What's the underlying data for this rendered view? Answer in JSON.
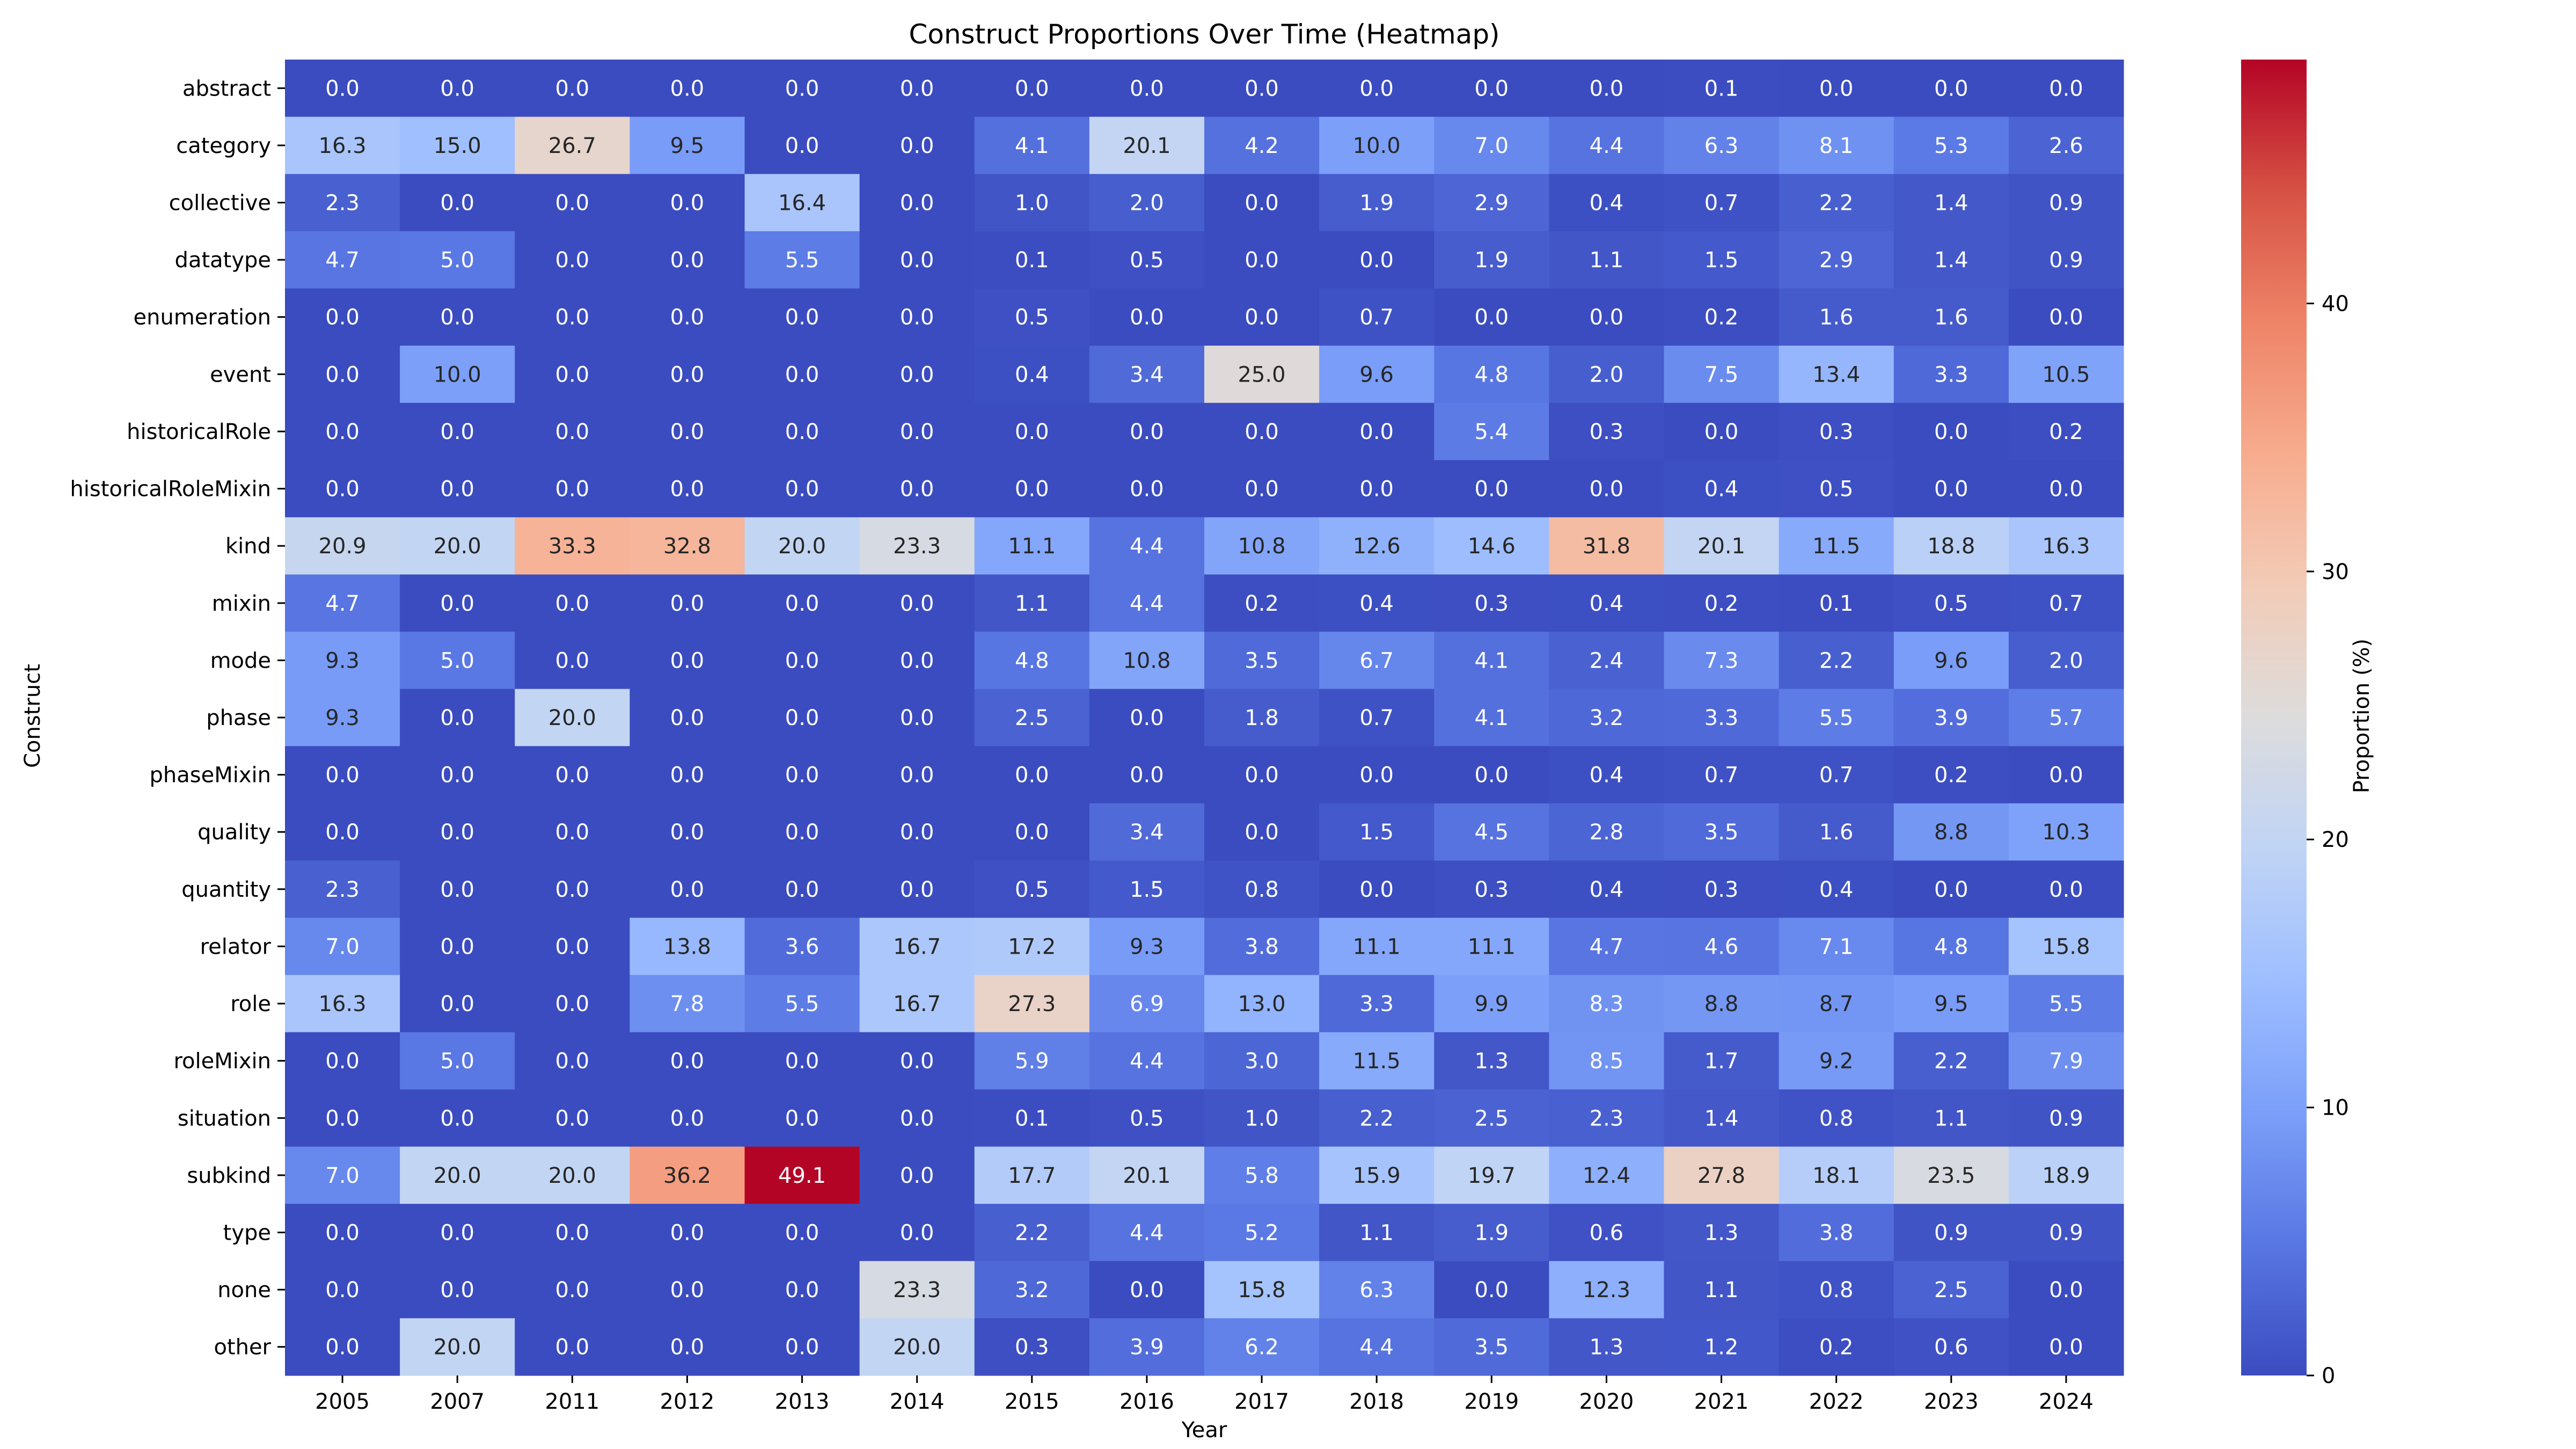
{
  "chart_data": {
    "type": "heatmap",
    "title": "Construct Proportions Over Time (Heatmap)",
    "xlabel": "Year",
    "ylabel": "Construct",
    "colorbar": {
      "label": "Proportion (%)",
      "ticks": [
        0,
        10,
        20,
        30,
        40
      ],
      "range": [
        0,
        49.1
      ],
      "colormap": "coolwarm",
      "colormap_stops": [
        "#3b4cc0",
        "#5977e3",
        "#7b9ff9",
        "#9ebeff",
        "#c0d4f5",
        "#dddcdc",
        "#f2cbb7",
        "#f7ac8e",
        "#ee8468",
        "#d65244",
        "#b40426"
      ]
    },
    "columns": [
      "2005",
      "2007",
      "2011",
      "2012",
      "2013",
      "2014",
      "2015",
      "2016",
      "2017",
      "2018",
      "2019",
      "2020",
      "2021",
      "2022",
      "2023",
      "2024"
    ],
    "rows": [
      "abstract",
      "category",
      "collective",
      "datatype",
      "enumeration",
      "event",
      "historicalRole",
      "historicalRoleMixin",
      "kind",
      "mixin",
      "mode",
      "phase",
      "phaseMixin",
      "quality",
      "quantity",
      "relator",
      "role",
      "roleMixin",
      "situation",
      "subkind",
      "type",
      "none",
      "other"
    ],
    "values": [
      [
        0.0,
        0.0,
        0.0,
        0.0,
        0.0,
        0.0,
        0.0,
        0.0,
        0.0,
        0.0,
        0.0,
        0.0,
        0.1,
        0.0,
        0.0,
        0.0
      ],
      [
        16.3,
        15.0,
        26.7,
        9.5,
        0.0,
        0.0,
        4.1,
        20.1,
        4.2,
        10.0,
        7.0,
        4.4,
        6.3,
        8.1,
        5.3,
        2.6
      ],
      [
        2.3,
        0.0,
        0.0,
        0.0,
        16.4,
        0.0,
        1.0,
        2.0,
        0.0,
        1.9,
        2.9,
        0.4,
        0.7,
        2.2,
        1.4,
        0.9
      ],
      [
        4.7,
        5.0,
        0.0,
        0.0,
        5.5,
        0.0,
        0.1,
        0.5,
        0.0,
        0.0,
        1.9,
        1.1,
        1.5,
        2.9,
        1.4,
        0.9
      ],
      [
        0.0,
        0.0,
        0.0,
        0.0,
        0.0,
        0.0,
        0.5,
        0.0,
        0.0,
        0.7,
        0.0,
        0.0,
        0.2,
        1.6,
        1.6,
        0.0
      ],
      [
        0.0,
        10.0,
        0.0,
        0.0,
        0.0,
        0.0,
        0.4,
        3.4,
        25.0,
        9.6,
        4.8,
        2.0,
        7.5,
        13.4,
        3.3,
        10.5
      ],
      [
        0.0,
        0.0,
        0.0,
        0.0,
        0.0,
        0.0,
        0.0,
        0.0,
        0.0,
        0.0,
        5.4,
        0.3,
        0.0,
        0.3,
        0.0,
        0.2
      ],
      [
        0.0,
        0.0,
        0.0,
        0.0,
        0.0,
        0.0,
        0.0,
        0.0,
        0.0,
        0.0,
        0.0,
        0.0,
        0.4,
        0.5,
        0.0,
        0.0
      ],
      [
        20.9,
        20.0,
        33.3,
        32.8,
        20.0,
        23.3,
        11.1,
        4.4,
        10.8,
        12.6,
        14.6,
        31.8,
        20.1,
        11.5,
        18.8,
        16.3
      ],
      [
        4.7,
        0.0,
        0.0,
        0.0,
        0.0,
        0.0,
        1.1,
        4.4,
        0.2,
        0.4,
        0.3,
        0.4,
        0.2,
        0.1,
        0.5,
        0.7
      ],
      [
        9.3,
        5.0,
        0.0,
        0.0,
        0.0,
        0.0,
        4.8,
        10.8,
        3.5,
        6.7,
        4.1,
        2.4,
        7.3,
        2.2,
        9.6,
        2.0
      ],
      [
        9.3,
        0.0,
        20.0,
        0.0,
        0.0,
        0.0,
        2.5,
        0.0,
        1.8,
        0.7,
        4.1,
        3.2,
        3.3,
        5.5,
        3.9,
        5.7
      ],
      [
        0.0,
        0.0,
        0.0,
        0.0,
        0.0,
        0.0,
        0.0,
        0.0,
        0.0,
        0.0,
        0.0,
        0.4,
        0.7,
        0.7,
        0.2,
        0.0
      ],
      [
        0.0,
        0.0,
        0.0,
        0.0,
        0.0,
        0.0,
        0.0,
        3.4,
        0.0,
        1.5,
        4.5,
        2.8,
        3.5,
        1.6,
        8.8,
        10.3
      ],
      [
        2.3,
        0.0,
        0.0,
        0.0,
        0.0,
        0.0,
        0.5,
        1.5,
        0.8,
        0.0,
        0.3,
        0.4,
        0.3,
        0.4,
        0.0,
        0.0
      ],
      [
        7.0,
        0.0,
        0.0,
        13.8,
        3.6,
        16.7,
        17.2,
        9.3,
        3.8,
        11.1,
        11.1,
        4.7,
        4.6,
        7.1,
        4.8,
        15.8
      ],
      [
        16.3,
        0.0,
        0.0,
        7.8,
        5.5,
        16.7,
        27.3,
        6.9,
        13.0,
        3.3,
        9.9,
        8.3,
        8.8,
        8.7,
        9.5,
        5.5
      ],
      [
        0.0,
        5.0,
        0.0,
        0.0,
        0.0,
        0.0,
        5.9,
        4.4,
        3.0,
        11.5,
        1.3,
        8.5,
        1.7,
        9.2,
        2.2,
        7.9
      ],
      [
        0.0,
        0.0,
        0.0,
        0.0,
        0.0,
        0.0,
        0.1,
        0.5,
        1.0,
        2.2,
        2.5,
        2.3,
        1.4,
        0.8,
        1.1,
        0.9
      ],
      [
        7.0,
        20.0,
        20.0,
        36.2,
        49.1,
        0.0,
        17.7,
        20.1,
        5.8,
        15.9,
        19.7,
        12.4,
        27.8,
        18.1,
        23.5,
        18.9
      ],
      [
        0.0,
        0.0,
        0.0,
        0.0,
        0.0,
        0.0,
        2.2,
        4.4,
        5.2,
        1.1,
        1.9,
        0.6,
        1.3,
        3.8,
        0.9,
        0.9
      ],
      [
        0.0,
        0.0,
        0.0,
        0.0,
        0.0,
        23.3,
        3.2,
        0.0,
        15.8,
        6.3,
        0.0,
        12.3,
        1.1,
        0.8,
        2.5,
        0.0
      ],
      [
        0.0,
        20.0,
        0.0,
        0.0,
        0.0,
        20.0,
        0.3,
        3.9,
        6.2,
        4.4,
        3.5,
        1.3,
        1.2,
        0.2,
        0.6,
        0.0
      ]
    ]
  }
}
